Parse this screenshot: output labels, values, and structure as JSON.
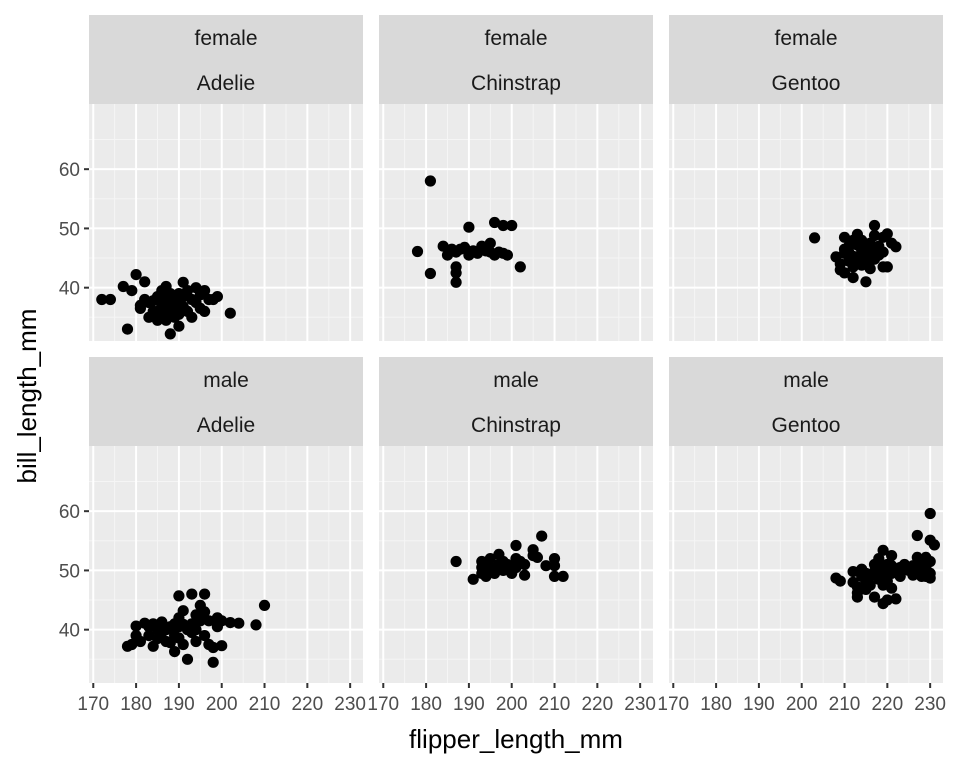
{
  "chart_data": {
    "type": "scatter",
    "facet_layout": "2 rows (sex) x 3 columns (species)",
    "xlabel": "flipper_length_mm",
    "ylabel": "bill_length_mm",
    "xlim": [
      169,
      233
    ],
    "ylim": [
      31,
      71
    ],
    "x_ticks": [
      170,
      180,
      190,
      200,
      210,
      220,
      230
    ],
    "y_ticks": [
      40,
      50,
      60
    ],
    "grid": true,
    "point_color": "#000000",
    "panel_background": "#ebebeb",
    "strip_background": "#d9d9d9",
    "panels": [
      {
        "strip": [
          "female",
          "Adelie"
        ],
        "points": [
          [
            172,
            38
          ],
          [
            174,
            38
          ],
          [
            177,
            40.2
          ],
          [
            178,
            33
          ],
          [
            179,
            39.5
          ],
          [
            180,
            42.2
          ],
          [
            181,
            37
          ],
          [
            181,
            36.5
          ],
          [
            182,
            38
          ],
          [
            182,
            41
          ],
          [
            183,
            37.5
          ],
          [
            183,
            35
          ],
          [
            184,
            36
          ],
          [
            184,
            37.8
          ],
          [
            185,
            34.5
          ],
          [
            185,
            36
          ],
          [
            185,
            38.5
          ],
          [
            186,
            39.5
          ],
          [
            186,
            35.2
          ],
          [
            186,
            37
          ],
          [
            187,
            40.2
          ],
          [
            187,
            36
          ],
          [
            187,
            38
          ],
          [
            187,
            34.5
          ],
          [
            188,
            39
          ],
          [
            188,
            36.5
          ],
          [
            188,
            32.2
          ],
          [
            188,
            37.5
          ],
          [
            189,
            35
          ],
          [
            189,
            38
          ],
          [
            189,
            36
          ],
          [
            190,
            39
          ],
          [
            190,
            37
          ],
          [
            190,
            33.5
          ],
          [
            190,
            35.5
          ],
          [
            191,
            40.9
          ],
          [
            191,
            38.5
          ],
          [
            191,
            36.8
          ],
          [
            192,
            39.5
          ],
          [
            192,
            36
          ],
          [
            193,
            38
          ],
          [
            193,
            35
          ],
          [
            194,
            40
          ],
          [
            194,
            37.5
          ],
          [
            195,
            36.5
          ],
          [
            195,
            38.8
          ],
          [
            196,
            39.5
          ],
          [
            196,
            36
          ],
          [
            197,
            38
          ],
          [
            198,
            38
          ],
          [
            199,
            38.5
          ],
          [
            202,
            35.7
          ]
        ]
      },
      {
        "strip": [
          "female",
          "Chinstrap"
        ],
        "points": [
          [
            178,
            46.1
          ],
          [
            181,
            58
          ],
          [
            181,
            42.4
          ],
          [
            184,
            47
          ],
          [
            185,
            45.5
          ],
          [
            186,
            46.5
          ],
          [
            187,
            46
          ],
          [
            187,
            43.5
          ],
          [
            187,
            42.5
          ],
          [
            187,
            40.9
          ],
          [
            188,
            46.5
          ],
          [
            189,
            46.8
          ],
          [
            190,
            45.5
          ],
          [
            190,
            50.2
          ],
          [
            191,
            46.2
          ],
          [
            192,
            45.8
          ],
          [
            193,
            46.5
          ],
          [
            193,
            47
          ],
          [
            194,
            46.2
          ],
          [
            195,
            46
          ],
          [
            195,
            47.5
          ],
          [
            196,
            45.5
          ],
          [
            196,
            51
          ],
          [
            197,
            46
          ],
          [
            198,
            50.5
          ],
          [
            198,
            45.8
          ],
          [
            199,
            45.5
          ],
          [
            200,
            50.5
          ],
          [
            202,
            43.5
          ]
        ]
      },
      {
        "strip": [
          "female",
          "Gentoo"
        ],
        "points": [
          [
            203,
            48.4
          ],
          [
            208,
            45.2
          ],
          [
            209,
            44
          ],
          [
            209,
            43
          ],
          [
            210,
            46.5
          ],
          [
            210,
            42.5
          ],
          [
            210,
            45.8
          ],
          [
            210,
            48.5
          ],
          [
            211,
            47
          ],
          [
            211,
            44.5
          ],
          [
            211,
            46
          ],
          [
            212,
            48
          ],
          [
            212,
            43.5
          ],
          [
            212,
            41.7
          ],
          [
            212,
            45.3
          ],
          [
            213,
            47.2
          ],
          [
            213,
            45
          ],
          [
            213,
            44.2
          ],
          [
            213,
            49
          ],
          [
            214,
            46.2
          ],
          [
            214,
            43.8
          ],
          [
            214,
            48
          ],
          [
            215,
            47
          ],
          [
            215,
            45
          ],
          [
            215,
            46.5
          ],
          [
            215,
            41
          ],
          [
            216,
            44.5
          ],
          [
            216,
            47.5
          ],
          [
            216,
            43.2
          ],
          [
            216,
            45.8
          ],
          [
            217,
            50.5
          ],
          [
            217,
            46
          ],
          [
            217,
            48.8
          ],
          [
            217,
            44.8
          ],
          [
            218,
            47
          ],
          [
            218,
            45.5
          ],
          [
            219,
            43.5
          ],
          [
            219,
            48.5
          ],
          [
            219,
            46
          ],
          [
            220,
            49.1
          ],
          [
            220,
            43.5
          ],
          [
            221,
            47.5
          ],
          [
            222,
            46.9
          ]
        ]
      },
      {
        "strip": [
          "male",
          "Adelie"
        ],
        "points": [
          [
            178,
            37.2
          ],
          [
            179,
            37.5
          ],
          [
            180,
            40.6
          ],
          [
            180,
            39
          ],
          [
            181,
            38
          ],
          [
            182,
            41.1
          ],
          [
            183,
            40.5
          ],
          [
            183,
            39
          ],
          [
            184,
            37.2
          ],
          [
            184,
            41
          ],
          [
            185,
            40
          ],
          [
            185,
            38.5
          ],
          [
            186,
            39.5
          ],
          [
            186,
            41.3
          ],
          [
            187,
            40
          ],
          [
            187,
            38
          ],
          [
            188,
            37.8
          ],
          [
            188,
            40.5
          ],
          [
            189,
            39
          ],
          [
            189,
            41
          ],
          [
            189,
            36.3
          ],
          [
            190,
            45.7
          ],
          [
            190,
            40.5
          ],
          [
            190,
            38.6
          ],
          [
            190,
            42
          ],
          [
            191,
            40.9
          ],
          [
            191,
            43.2
          ],
          [
            191,
            37.5
          ],
          [
            192,
            35
          ],
          [
            192,
            40
          ],
          [
            193,
            46
          ],
          [
            193,
            41
          ],
          [
            193,
            39.5
          ],
          [
            194,
            42.5
          ],
          [
            194,
            40
          ],
          [
            194,
            38
          ],
          [
            195,
            44.1
          ],
          [
            195,
            41.5
          ],
          [
            196,
            43
          ],
          [
            196,
            39
          ],
          [
            196,
            46
          ],
          [
            197,
            41.5
          ],
          [
            197,
            37.5
          ],
          [
            198,
            37
          ],
          [
            198,
            34.5
          ],
          [
            199,
            40.5
          ],
          [
            199,
            42
          ],
          [
            200,
            41.5
          ],
          [
            200,
            37.3
          ],
          [
            202,
            41.2
          ],
          [
            204,
            41.1
          ],
          [
            208,
            40.8
          ],
          [
            210,
            44.1
          ]
        ]
      },
      {
        "strip": [
          "male",
          "Chinstrap"
        ],
        "points": [
          [
            187,
            51.5
          ],
          [
            191,
            48.5
          ],
          [
            193,
            49.5
          ],
          [
            193,
            50.5
          ],
          [
            193,
            51.5
          ],
          [
            194,
            50
          ],
          [
            194,
            51
          ],
          [
            194,
            49
          ],
          [
            195,
            50.5
          ],
          [
            195,
            52
          ],
          [
            196,
            50.2
          ],
          [
            196,
            49.5
          ],
          [
            197,
            51
          ],
          [
            197,
            52.7
          ],
          [
            198,
            50
          ],
          [
            198,
            51.5
          ],
          [
            199,
            51
          ],
          [
            200,
            49.5
          ],
          [
            201,
            54.2
          ],
          [
            201,
            50.5
          ],
          [
            201,
            52
          ],
          [
            202,
            51.5
          ],
          [
            203,
            49.2
          ],
          [
            203,
            51
          ],
          [
            205,
            53.5
          ],
          [
            205,
            52.5
          ],
          [
            206,
            52.2
          ],
          [
            207,
            55.8
          ],
          [
            208,
            50.8
          ],
          [
            210,
            52
          ],
          [
            210,
            49
          ],
          [
            210,
            50.8
          ],
          [
            212,
            49
          ]
        ]
      },
      {
        "strip": [
          "male",
          "Gentoo"
        ],
        "points": [
          [
            208,
            48.7
          ],
          [
            209,
            48.2
          ],
          [
            212,
            49.8
          ],
          [
            212,
            48
          ],
          [
            213,
            47.2
          ],
          [
            213,
            45.5
          ],
          [
            213,
            46.2
          ],
          [
            214,
            49
          ],
          [
            214,
            50.2
          ],
          [
            215,
            48
          ],
          [
            215,
            49.5
          ],
          [
            215,
            46.8
          ],
          [
            216,
            49.1
          ],
          [
            216,
            47.5
          ],
          [
            217,
            51
          ],
          [
            217,
            49.8
          ],
          [
            217,
            45.5
          ],
          [
            218,
            48.5
          ],
          [
            218,
            50.5
          ],
          [
            218,
            52
          ],
          [
            219,
            53.4
          ],
          [
            219,
            49
          ],
          [
            219,
            44.4
          ],
          [
            219,
            47.5
          ],
          [
            220,
            51
          ],
          [
            220,
            50
          ],
          [
            220,
            48.2
          ],
          [
            220,
            45
          ],
          [
            221,
            52.5
          ],
          [
            221,
            50.8
          ],
          [
            221,
            49.5
          ],
          [
            221,
            47
          ],
          [
            222,
            50
          ],
          [
            222,
            45.2
          ],
          [
            223,
            50.5
          ],
          [
            223,
            49
          ],
          [
            224,
            50.7
          ],
          [
            224,
            51
          ],
          [
            225,
            50
          ],
          [
            226,
            50.8
          ],
          [
            226,
            49.2
          ],
          [
            227,
            52.2
          ],
          [
            227,
            50.2
          ],
          [
            227,
            55.9
          ],
          [
            228,
            51
          ],
          [
            228,
            49
          ],
          [
            229,
            49
          ],
          [
            229,
            52.2
          ],
          [
            229,
            50.5
          ],
          [
            230,
            59.6
          ],
          [
            230,
            55.1
          ],
          [
            230,
            48.7
          ],
          [
            230,
            51.5
          ],
          [
            230,
            49.5
          ],
          [
            231,
            54.3
          ]
        ]
      }
    ]
  }
}
